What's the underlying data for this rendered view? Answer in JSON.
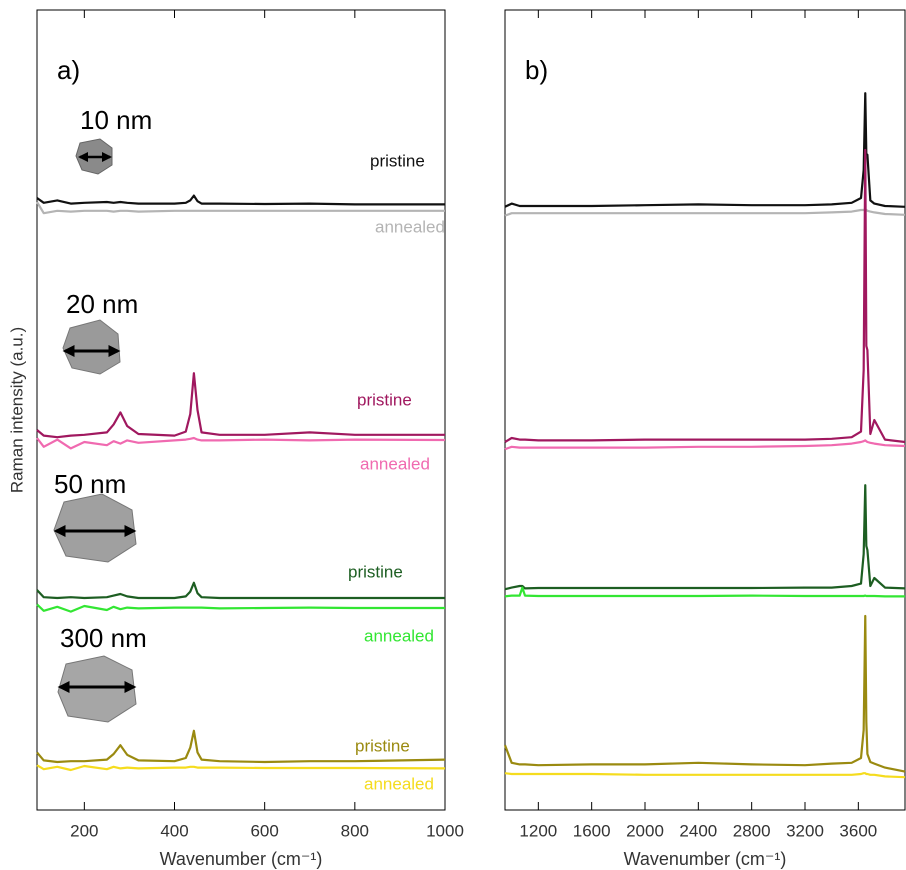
{
  "chart_data": [
    {
      "type": "line",
      "panel_label": "a)",
      "xlabel": "Wavenumber (cm⁻¹)",
      "ylabel": "Raman intensity (a.u.)",
      "xlim": [
        95,
        1000
      ],
      "xticks": [
        200,
        400,
        600,
        800,
        1000
      ],
      "ylim": [
        0,
        100
      ],
      "annotations": [
        "10 nm",
        "20 nm",
        "50 nm",
        "300 nm"
      ],
      "x": [
        95,
        110,
        140,
        170,
        200,
        250,
        265,
        280,
        295,
        320,
        400,
        425,
        435,
        443,
        451,
        460,
        500,
        600,
        700,
        800,
        1000
      ],
      "series": [
        {
          "name": "pristine",
          "color": "#111111",
          "values": [
            76.5,
            75.9,
            76.2,
            75.8,
            75.9,
            76.0,
            75.9,
            76.0,
            75.9,
            75.8,
            75.8,
            75.9,
            76.2,
            76.8,
            76.1,
            75.8,
            75.8,
            75.75,
            75.8,
            75.7,
            75.7
          ]
        },
        {
          "name": "annealed",
          "color": "#b4b4b4",
          "values": [
            76,
            74.6,
            74.9,
            74.8,
            74.9,
            74.9,
            74.8,
            74.9,
            74.9,
            74.8,
            74.9,
            74.9,
            74.9,
            74.9,
            74.9,
            74.9,
            74.9,
            74.9,
            74.9,
            74.9,
            74.9
          ]
        },
        {
          "name": "pristine",
          "color": "#a0185f",
          "values": [
            47.5,
            46.8,
            46.6,
            46.8,
            46.9,
            47.2,
            48.2,
            49.7,
            48.0,
            47.0,
            46.8,
            47.3,
            49.5,
            54.6,
            50.0,
            47.2,
            46.9,
            46.9,
            47.2,
            46.9,
            46.9
          ]
        },
        {
          "name": "annealed",
          "color": "#f06ab0",
          "values": [
            46.5,
            45.4,
            46.3,
            45.2,
            46.0,
            45.6,
            46.1,
            45.8,
            46.2,
            45.9,
            46.2,
            46.3,
            46.4,
            46.5,
            46.3,
            46.2,
            46.2,
            46.3,
            46.2,
            46.3,
            46.25
          ]
        },
        {
          "name": "pristine",
          "color": "#1d5e22",
          "values": [
            27.5,
            26.6,
            26.5,
            26.6,
            26.5,
            26.6,
            26.8,
            27.0,
            26.7,
            26.5,
            26.5,
            26.7,
            27.3,
            28.4,
            27.1,
            26.6,
            26.5,
            26.5,
            26.5,
            26.5,
            26.5
          ]
        },
        {
          "name": "annealed",
          "color": "#33e633",
          "values": [
            25.7,
            24.9,
            25.4,
            24.8,
            25.5,
            25.0,
            25.4,
            25.1,
            25.3,
            25.2,
            25.3,
            25.3,
            25.3,
            25.3,
            25.3,
            25.3,
            25.2,
            25.25,
            25.3,
            25.25,
            25.25
          ]
        },
        {
          "name": "pristine",
          "color": "#9a8a10",
          "values": [
            7.2,
            6.2,
            6.0,
            6.1,
            6.1,
            6.3,
            7.0,
            8.1,
            6.9,
            6.2,
            6.1,
            6.5,
            7.8,
            9.9,
            7.2,
            6.3,
            6.1,
            6.0,
            6.1,
            6.1,
            6.3
          ]
        },
        {
          "name": "annealed",
          "color": "#f5dc1e",
          "values": [
            5.6,
            5.1,
            5.4,
            5.0,
            5.5,
            5.1,
            5.4,
            5.2,
            5.3,
            5.2,
            5.3,
            5.3,
            5.4,
            5.4,
            5.3,
            5.3,
            5.3,
            5.25,
            5.25,
            5.25,
            5.2
          ]
        }
      ]
    },
    {
      "type": "line",
      "panel_label": "b)",
      "xlabel": "Wavenumber (cm⁻¹)",
      "xlim": [
        950,
        3950
      ],
      "xticks": [
        1200,
        1600,
        2000,
        2400,
        2800,
        3200,
        3600
      ],
      "ylim": [
        0,
        100
      ],
      "x": [
        950,
        1000,
        1060,
        1080,
        1100,
        1200,
        1600,
        2000,
        2400,
        2800,
        3200,
        3400,
        3550,
        3620,
        3640,
        3652,
        3660,
        3668,
        3690,
        3720,
        3800,
        3950
      ],
      "series": [
        {
          "color": "#111111",
          "values": [
            75.4,
            75.8,
            75.5,
            75.5,
            75.5,
            75.5,
            75.5,
            75.6,
            75.7,
            75.6,
            75.6,
            75.7,
            75.9,
            76.5,
            80,
            89.6,
            82,
            81.9,
            76.2,
            75.8,
            75.5,
            75.4
          ]
        },
        {
          "color": "#b4b4b4",
          "values": [
            74.3,
            74.6,
            74.6,
            74.6,
            74.6,
            74.6,
            74.6,
            74.6,
            74.6,
            74.6,
            74.6,
            74.7,
            74.8,
            75.0,
            75.0,
            75.1,
            75.0,
            74.9,
            74.8,
            74.7,
            74.5,
            74.4
          ]
        },
        {
          "color": "#a0185f",
          "values": [
            46.0,
            46.5,
            46.3,
            46.3,
            46.3,
            46.2,
            46.2,
            46.3,
            46.3,
            46.3,
            46.3,
            46.4,
            46.6,
            47.3,
            55,
            82.5,
            58,
            57.5,
            47.0,
            48.75,
            46.3,
            46.0
          ]
        },
        {
          "color": "#f06ab0",
          "values": [
            45.1,
            45.4,
            45.3,
            45.3,
            45.3,
            45.3,
            45.3,
            45.3,
            45.4,
            45.4,
            45.5,
            45.6,
            45.8,
            46.0,
            46.1,
            46.2,
            46.1,
            46.0,
            45.9,
            45.8,
            45.6,
            45.5
          ]
        },
        {
          "color": "#1d5e22",
          "values": [
            27.6,
            27.8,
            28.0,
            28.0,
            27.7,
            27.75,
            27.75,
            27.75,
            27.75,
            27.75,
            27.8,
            27.8,
            28.0,
            28.3,
            32,
            40.6,
            33,
            32.5,
            28.0,
            29.0,
            27.8,
            27.7
          ]
        },
        {
          "color": "#33e633",
          "values": [
            26.7,
            26.8,
            26.8,
            27.8,
            26.8,
            26.75,
            26.75,
            26.75,
            26.75,
            26.8,
            26.75,
            26.75,
            26.75,
            26.75,
            26.75,
            26.8,
            26.75,
            26.75,
            26.75,
            26.75,
            26.7,
            26.7
          ]
        },
        {
          "color": "#9a8a10",
          "values": [
            8.1,
            5.9,
            5.7,
            5.7,
            5.7,
            5.6,
            5.7,
            5.7,
            5.9,
            5.7,
            5.6,
            5.8,
            5.9,
            6.5,
            10,
            24.25,
            11,
            7,
            6.0,
            5.8,
            5.3,
            4.8
          ]
        },
        {
          "color": "#f5dc1e",
          "values": [
            4.6,
            4.5,
            4.5,
            4.5,
            4.5,
            4.5,
            4.5,
            4.4,
            4.4,
            4.4,
            4.4,
            4.4,
            4.4,
            4.5,
            4.6,
            4.6,
            4.5,
            4.5,
            4.4,
            4.4,
            4.2,
            4.1
          ]
        }
      ]
    }
  ]
}
